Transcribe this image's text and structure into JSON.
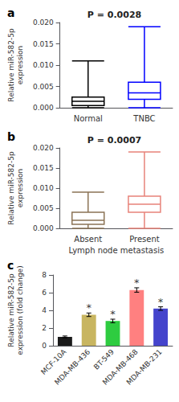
{
  "chart_data": [
    {
      "type": "boxplot",
      "panel_label": "a",
      "title": "P = 0.0028",
      "categories": [
        "Normal",
        "TNBC"
      ],
      "colors": [
        "black",
        "blue"
      ],
      "ylabel": "Relative miR-582-5p\nexpression",
      "ylim": [
        0,
        0.02
      ],
      "yticks": [
        {
          "value": 0.0,
          "label": "0.000"
        },
        {
          "value": 0.005,
          "label": "0.005"
        },
        {
          "value": 0.01,
          "label": "0.010"
        },
        {
          "value": 0.015,
          "label": "0.015"
        },
        {
          "value": 0.02,
          "label": "0.020"
        }
      ],
      "grid": false,
      "boxes": [
        {
          "whislo": 0.0,
          "q1": 0.0005,
          "median": 0.0015,
          "q3": 0.0025,
          "whishi": 0.011
        },
        {
          "whislo": 0.0,
          "q1": 0.002,
          "median": 0.0035,
          "q3": 0.006,
          "whishi": 0.019
        }
      ]
    },
    {
      "type": "boxplot",
      "panel_label": "b",
      "title": "P = 0.0007",
      "categories": [
        "Absent",
        "Present"
      ],
      "colors": [
        "#8B7355",
        "#E8837A"
      ],
      "ylabel": "Relative miR-582-5p\nexpression",
      "xlabel": "Lymph node metastasis",
      "ylim": [
        0,
        0.02
      ],
      "yticks": [
        {
          "value": 0.0,
          "label": "0.000"
        },
        {
          "value": 0.005,
          "label": "0.005"
        },
        {
          "value": 0.01,
          "label": "0.010"
        },
        {
          "value": 0.015,
          "label": "0.015"
        },
        {
          "value": 0.02,
          "label": "0.020"
        }
      ],
      "grid": false,
      "boxes": [
        {
          "whislo": 0.0,
          "q1": 0.001,
          "median": 0.002,
          "q3": 0.004,
          "whishi": 0.009
        },
        {
          "whislo": 0.0,
          "q1": 0.004,
          "median": 0.006,
          "q3": 0.008,
          "whishi": 0.019
        }
      ]
    },
    {
      "type": "bar",
      "panel_label": "c",
      "categories": [
        "MCF-10A",
        "MDA-MB-436",
        "BT-549",
        "MDA-MB-468",
        "MDA-MB-231"
      ],
      "values": [
        1.0,
        3.5,
        2.8,
        6.3,
        4.2
      ],
      "errors": [
        0.1,
        0.2,
        0.2,
        0.25,
        0.2
      ],
      "colors": [
        "#1a1a1a",
        "#C8B560",
        "#2ECC40",
        "#FF8080",
        "#4444CC"
      ],
      "ylabel": "Relative miR-582-5p\nexpression (fold change)",
      "ylim": [
        0,
        8
      ],
      "yticks": [
        0,
        2,
        4,
        6,
        8
      ],
      "grid": false,
      "annotations": [
        {
          "category": "MDA-MB-436",
          "text": "*"
        },
        {
          "category": "BT-549",
          "text": "*"
        },
        {
          "category": "MDA-MB-468",
          "text": "*"
        },
        {
          "category": "MDA-MB-231",
          "text": "*"
        }
      ]
    }
  ]
}
